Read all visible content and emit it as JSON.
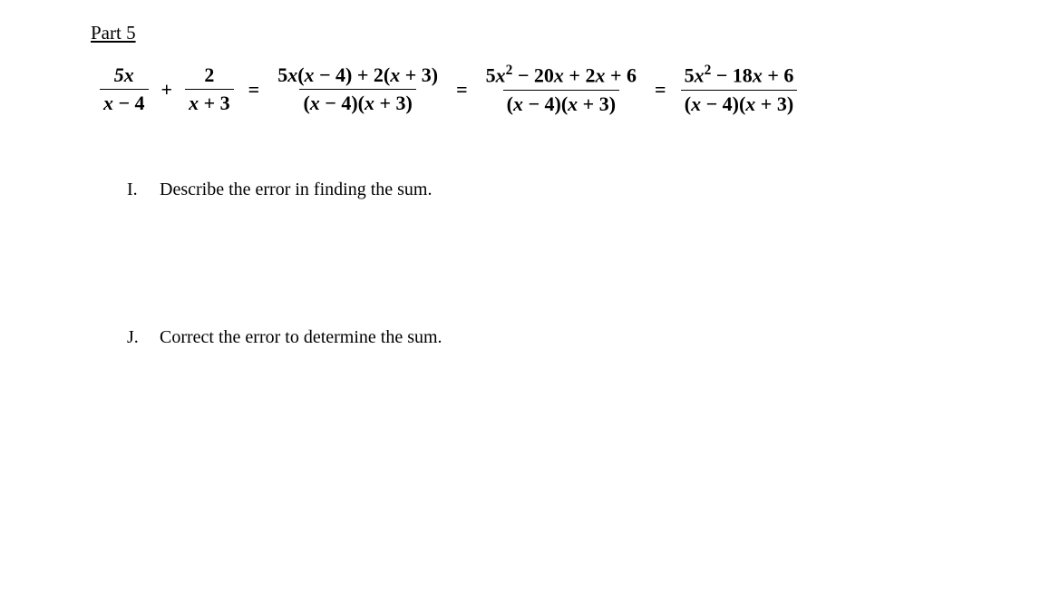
{
  "heading": "Part 5",
  "equation": {
    "term1": {
      "num": "5x",
      "den": "x − 4"
    },
    "op1": "+",
    "term2": {
      "num": "2",
      "den": "x + 3"
    },
    "eq1": "=",
    "term3": {
      "num": "5x(x − 4) + 2(x + 3)",
      "den": "(x − 4)(x + 3)"
    },
    "eq2": "=",
    "term4": {
      "num_html": "5x² − 20x + 2x + 6",
      "den": "(x − 4)(x + 3)"
    },
    "eq3": "=",
    "term5": {
      "num_html": "5x² − 18x + 6",
      "den": "(x − 4)(x + 3)"
    }
  },
  "questions": [
    {
      "label": "I.",
      "text": "Describe the error in finding the sum."
    },
    {
      "label": "J.",
      "text": "Correct the error to determine the sum."
    }
  ],
  "style": {
    "background_color": "#ffffff",
    "text_color": "#000000",
    "heading_fontsize": 21,
    "equation_fontsize": 22,
    "question_fontsize": 20,
    "font_family": "Times New Roman"
  }
}
